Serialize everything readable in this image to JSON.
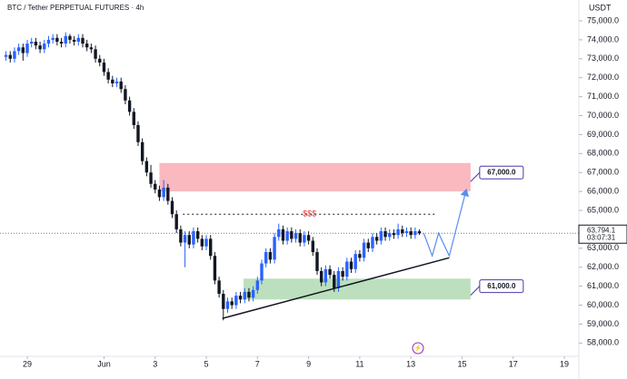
{
  "chart_data": {
    "type": "candlestick",
    "title": "BTC / Tether PERPETUAL FUTURES · 4h",
    "currency": "USDT",
    "up_color": "#2962ff",
    "down_color": "#131722",
    "xlim": [
      -25.6,
      517.6
    ],
    "ylim": [
      57300,
      76100
    ],
    "xticks": [
      {
        "value": 0,
        "label": "29"
      },
      {
        "value": 72,
        "label": "Jun"
      },
      {
        "value": 120,
        "label": "3"
      },
      {
        "value": 168,
        "label": "5"
      },
      {
        "value": 216,
        "label": "7"
      },
      {
        "value": 264,
        "label": "9"
      },
      {
        "value": 312,
        "label": "11"
      },
      {
        "value": 360,
        "label": "13"
      },
      {
        "value": 408,
        "label": "15"
      },
      {
        "value": 456,
        "label": "17"
      },
      {
        "value": 504,
        "label": "19"
      }
    ],
    "yticks": [
      {
        "value": 58000,
        "label": "58,000.0"
      },
      {
        "value": 59000,
        "label": "59,000.0"
      },
      {
        "value": 60000,
        "label": "60,000.0"
      },
      {
        "value": 61000,
        "label": "61,000.0"
      },
      {
        "value": 62000,
        "label": "62,000.0"
      },
      {
        "value": 63000,
        "label": "63,000.0"
      },
      {
        "value": 64000,
        "label": "64,000.0"
      },
      {
        "value": 65000,
        "label": "65,000.0"
      },
      {
        "value": 66000,
        "label": "66,000.0"
      },
      {
        "value": 67000,
        "label": "67,000.0"
      },
      {
        "value": 68000,
        "label": "68,000.0"
      },
      {
        "value": 69000,
        "label": "69,000.0"
      },
      {
        "value": 70000,
        "label": "70,000.0"
      },
      {
        "value": 71000,
        "label": "71,000.0"
      },
      {
        "value": 72000,
        "label": "72,000.0"
      },
      {
        "value": 73000,
        "label": "73,000.0"
      },
      {
        "value": 74000,
        "label": "74,000.0"
      },
      {
        "value": 75000,
        "label": "75,000.0"
      }
    ],
    "x": [
      -20,
      -16,
      -12,
      -8,
      -4,
      0,
      4,
      8,
      12,
      16,
      20,
      24,
      28,
      32,
      36,
      40,
      44,
      48,
      52,
      56,
      60,
      64,
      68,
      72,
      76,
      80,
      84,
      88,
      92,
      96,
      100,
      104,
      108,
      112,
      116,
      120,
      124,
      128,
      132,
      136,
      140,
      144,
      148,
      152,
      156,
      160,
      164,
      168,
      172,
      176,
      180,
      184,
      188,
      192,
      196,
      200,
      204,
      208,
      212,
      216,
      220,
      224,
      228,
      232,
      236,
      240,
      244,
      248,
      252,
      256,
      260,
      264,
      268,
      272,
      276,
      280,
      284,
      288,
      292,
      296,
      300,
      304,
      308,
      312,
      316,
      320,
      324,
      328,
      332,
      336,
      340,
      344,
      348,
      352,
      356,
      360,
      364,
      368
    ],
    "open": [
      73100,
      73200,
      73000,
      73400,
      73600,
      73300,
      73800,
      73900,
      73700,
      73500,
      73800,
      74000,
      74100,
      73900,
      73800,
      74200,
      74000,
      73900,
      74100,
      73800,
      73600,
      73500,
      73000,
      72800,
      72300,
      71900,
      71700,
      71800,
      71400,
      70800,
      70200,
      69500,
      68600,
      67600,
      67000,
      66400,
      66100,
      65700,
      66200,
      65500,
      64800,
      64000,
      63300,
      63700,
      63200,
      63900,
      63500,
      63100,
      63500,
      62600,
      61300,
      60600,
      59800,
      60200,
      60000,
      60500,
      60300,
      60700,
      60400,
      60800,
      61300,
      62200,
      62800,
      62400,
      63600,
      64000,
      63400,
      63900,
      63500,
      63800,
      63300,
      63700,
      63400,
      62800,
      61800,
      61200,
      61900,
      61600,
      60900,
      61800,
      61500,
      62300,
      61900,
      62700,
      62500,
      63300,
      63000,
      63600,
      63400,
      63900,
      63600,
      63800,
      63700,
      64000,
      63800,
      63900,
      63700,
      63900
    ],
    "high": [
      73400,
      73400,
      73600,
      73800,
      73800,
      74000,
      74100,
      74100,
      73900,
      74000,
      74200,
      74300,
      74300,
      74100,
      74400,
      74300,
      74200,
      74300,
      74300,
      74000,
      73800,
      73700,
      73200,
      73000,
      72500,
      72100,
      72000,
      72000,
      71600,
      71000,
      70400,
      69700,
      68800,
      67800,
      67400,
      66600,
      66300,
      66600,
      66400,
      65700,
      65000,
      64200,
      63900,
      63900,
      64100,
      64100,
      63700,
      63700,
      63700,
      62800,
      61500,
      60800,
      60400,
      60400,
      60700,
      60700,
      60900,
      60900,
      61000,
      61500,
      62400,
      63000,
      63000,
      63800,
      64300,
      64200,
      64100,
      64100,
      64000,
      64000,
      63900,
      63900,
      63600,
      63000,
      62000,
      62100,
      62100,
      61800,
      62000,
      62000,
      62500,
      62500,
      62900,
      62900,
      63500,
      63500,
      63800,
      63800,
      64100,
      64100,
      64000,
      64000,
      64300,
      64200,
      64100,
      64100,
      64100,
      64000
    ],
    "low": [
      72900,
      72800,
      72800,
      73200,
      72900,
      73100,
      73600,
      73500,
      73300,
      73300,
      73600,
      73800,
      73700,
      73600,
      73600,
      73800,
      73700,
      73700,
      73600,
      73400,
      73300,
      72800,
      72600,
      72100,
      71700,
      71500,
      71500,
      71200,
      70600,
      70000,
      69300,
      68400,
      67400,
      66800,
      66200,
      65900,
      65500,
      65500,
      65300,
      64600,
      63800,
      63100,
      62000,
      63000,
      63000,
      63300,
      62900,
      62900,
      62400,
      61100,
      60400,
      59200,
      59600,
      59800,
      59800,
      60100,
      60100,
      60200,
      60200,
      60600,
      61100,
      62000,
      62200,
      62200,
      63400,
      63200,
      63200,
      63300,
      63300,
      63100,
      63100,
      63200,
      62600,
      61600,
      61000,
      61000,
      61400,
      60700,
      60700,
      61300,
      61300,
      61700,
      61700,
      62300,
      62300,
      62800,
      62800,
      63200,
      63200,
      63400,
      63400,
      63500,
      63500,
      63600,
      63600,
      63500,
      63500,
      63700
    ],
    "close": [
      73200,
      73000,
      73400,
      73600,
      73300,
      73800,
      73900,
      73700,
      73500,
      73800,
      74000,
      74100,
      73900,
      73800,
      74200,
      74000,
      73900,
      74100,
      73800,
      73600,
      73500,
      73000,
      72800,
      72300,
      71900,
      71700,
      71800,
      71400,
      70800,
      70200,
      69500,
      68600,
      67600,
      67000,
      66400,
      66100,
      65700,
      66200,
      65500,
      64800,
      64000,
      63300,
      63700,
      63200,
      63900,
      63500,
      63100,
      63500,
      62600,
      61300,
      60600,
      59800,
      60200,
      60000,
      60500,
      60300,
      60700,
      60400,
      60800,
      61300,
      62200,
      62800,
      62400,
      63600,
      64000,
      63400,
      63900,
      63500,
      63800,
      63300,
      63700,
      63400,
      62800,
      61800,
      61200,
      61900,
      61600,
      60900,
      61800,
      61500,
      62300,
      61900,
      62700,
      62500,
      63300,
      63000,
      63600,
      63400,
      63900,
      63600,
      63800,
      63700,
      64000,
      63800,
      63900,
      63700,
      63900,
      63794.1
    ],
    "last_price": {
      "value": 63794.1,
      "label": "63,794.1"
    },
    "countdown": "03:07:31",
    "zones": [
      {
        "y": [
          66000,
          67500
        ],
        "x": [
          124,
          416
        ],
        "color": "#f7a1a9",
        "level": {
          "value": 67000,
          "label": "67,000.0"
        }
      },
      {
        "y": [
          60300,
          61400
        ],
        "x": [
          203,
          416
        ],
        "color": "#a5d6a7",
        "level": {
          "value": 61000,
          "label": "61,000.0"
        }
      }
    ],
    "liquidity_line": {
      "value": 64800,
      "x": [
        146,
        384
      ],
      "label": "$$$",
      "color": "#e53935"
    },
    "trendline": {
      "x": [
        183,
        396
      ],
      "y": [
        59300,
        62500
      ]
    },
    "projection": {
      "x": [
        372,
        380,
        386,
        396,
        412
      ],
      "y": [
        63800,
        62600,
        63800,
        62600,
        66100
      ],
      "color": "#5b8def"
    }
  }
}
